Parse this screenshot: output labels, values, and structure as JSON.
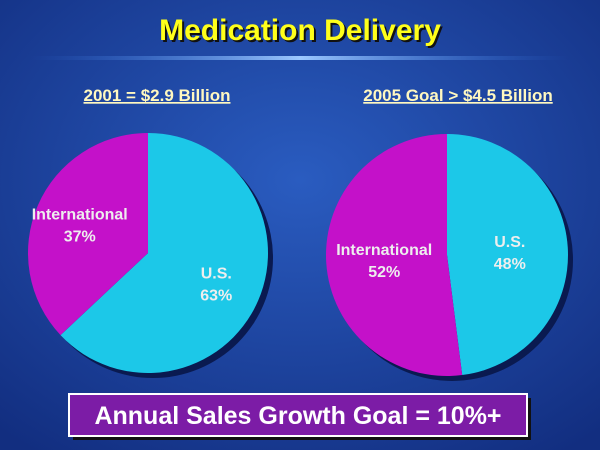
{
  "title": "Medication Delivery",
  "footer": "Annual Sales Growth Goal = 10%+",
  "chart_data": [
    {
      "type": "pie",
      "title": "2001 = $2.9 Billion",
      "categories": [
        "U.S.",
        "International"
      ],
      "values": [
        63,
        37
      ],
      "value_labels": [
        "63%",
        "37%"
      ],
      "colors": [
        "#1cc8e8",
        "#c411c9"
      ]
    },
    {
      "type": "pie",
      "title": "2005 Goal > $4.5 Billion",
      "categories": [
        "U.S.",
        "International"
      ],
      "values": [
        48,
        52
      ],
      "value_labels": [
        "48%",
        "52%"
      ],
      "colors": [
        "#1cc8e8",
        "#c411c9"
      ]
    }
  ]
}
